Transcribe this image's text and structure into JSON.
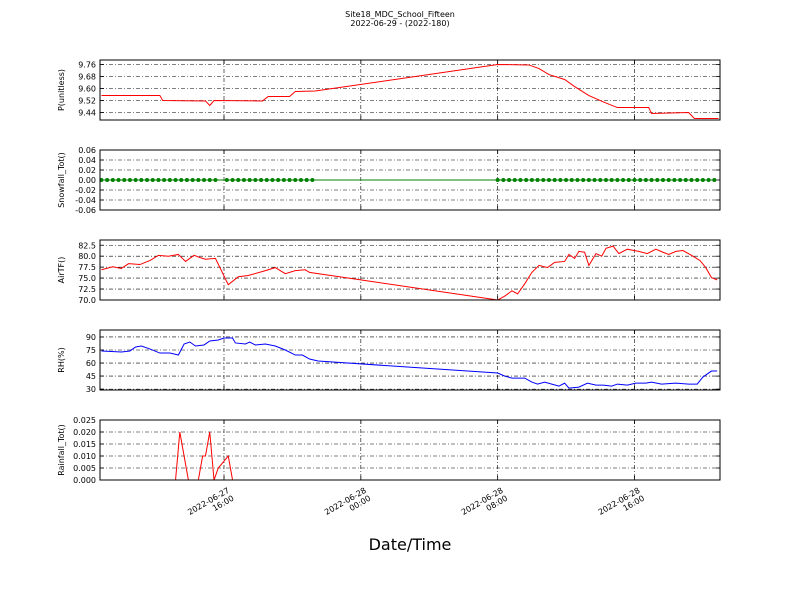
{
  "title": "Site18_MDC_School_Fifteen",
  "subtitle": "2022-06-29 - (2022-180)",
  "xlabel": "Date/Time",
  "chart_data": [
    {
      "type": "line",
      "ylabel": "P(unitless)",
      "xlim": [
        "2022-06-27T08:45",
        "2022-06-28T21:00"
      ],
      "ylim": [
        9.39,
        9.79
      ],
      "yticks": [
        9.44,
        9.52,
        {
          "value": 9.6,
          "label": "9.60"
        },
        9.68,
        9.76
      ],
      "grid": true,
      "series": [
        {
          "color": "#ff0000",
          "x": [
            "2022-06-27T08:50",
            "2022-06-27T12:15",
            "2022-06-27T12:25",
            "2022-06-27T14:55",
            "2022-06-27T15:10",
            "2022-06-27T15:25",
            "2022-06-27T18:15",
            "2022-06-27T18:35",
            "2022-06-27T19:50",
            "2022-06-27T20:10",
            "2022-06-27T21:20",
            "2022-06-28T08:00",
            "2022-06-28T09:50",
            "2022-06-28T10:25",
            "2022-06-28T11:00",
            "2022-06-28T11:55",
            "2022-06-28T12:30",
            "2022-06-28T13:20",
            "2022-06-28T14:15",
            "2022-06-28T15:00",
            "2022-06-28T16:50",
            "2022-06-28T17:00",
            "2022-06-28T19:10",
            "2022-06-28T19:30",
            "2022-06-28T20:55"
          ],
          "values": [
            9.553,
            9.553,
            9.52,
            9.517,
            9.487,
            9.52,
            9.517,
            9.547,
            9.547,
            9.58,
            9.583,
            9.76,
            9.757,
            9.733,
            9.693,
            9.66,
            9.613,
            9.553,
            9.507,
            9.473,
            9.473,
            9.433,
            9.44,
            9.4,
            9.4
          ]
        }
      ]
    },
    {
      "type": "line",
      "ylabel": "Snowfall_Tot()",
      "xlim": [
        "2022-06-27T08:45",
        "2022-06-28T21:00"
      ],
      "ylim": [
        -0.06,
        0.06
      ],
      "yticks": [
        -0.06,
        -0.04,
        -0.02,
        {
          "value": 0,
          "label": "0.00"
        },
        0.02,
        0.04,
        0.06
      ],
      "grid": true,
      "series": [
        {
          "color": "#008000",
          "marker": "dot",
          "x": [
            "2022-06-27T08:50",
            "2022-06-27T09:10",
            "2022-06-27T09:30",
            "2022-06-27T09:50",
            "2022-06-27T10:10",
            "2022-06-27T10:30",
            "2022-06-27T10:50",
            "2022-06-27T11:10",
            "2022-06-27T11:30",
            "2022-06-27T11:50",
            "2022-06-27T12:10",
            "2022-06-27T12:30",
            "2022-06-27T12:50",
            "2022-06-27T13:10",
            "2022-06-27T13:30",
            "2022-06-27T13:50",
            "2022-06-27T14:10",
            "2022-06-27T14:30",
            "2022-06-27T14:50",
            "2022-06-27T15:10",
            "2022-06-27T15:30",
            "2022-06-27T16:10",
            "2022-06-27T16:30",
            "2022-06-27T16:50",
            "2022-06-27T17:10",
            "2022-06-27T17:30",
            "2022-06-27T17:50",
            "2022-06-27T18:10",
            "2022-06-27T18:30",
            "2022-06-27T18:50",
            "2022-06-27T19:10",
            "2022-06-27T19:30",
            "2022-06-27T19:50",
            "2022-06-27T20:10",
            "2022-06-27T20:30",
            "2022-06-27T20:50",
            "2022-06-27T21:10",
            "2022-06-28T08:00",
            "2022-06-28T08:20",
            "2022-06-28T08:40",
            "2022-06-28T09:00",
            "2022-06-28T09:20",
            "2022-06-28T09:40",
            "2022-06-28T10:00",
            "2022-06-28T10:20",
            "2022-06-28T10:40",
            "2022-06-28T11:00",
            "2022-06-28T11:20",
            "2022-06-28T11:40",
            "2022-06-28T12:00",
            "2022-06-28T12:20",
            "2022-06-28T12:40",
            "2022-06-28T13:00",
            "2022-06-28T13:20",
            "2022-06-28T13:40",
            "2022-06-28T14:00",
            "2022-06-28T14:20",
            "2022-06-28T14:40",
            "2022-06-28T15:00",
            "2022-06-28T15:20",
            "2022-06-28T15:40",
            "2022-06-28T16:00",
            "2022-06-28T16:20",
            "2022-06-28T16:40",
            "2022-06-28T17:00",
            "2022-06-28T17:20",
            "2022-06-28T17:40",
            "2022-06-28T18:00",
            "2022-06-28T18:20",
            "2022-06-28T18:40",
            "2022-06-28T19:00",
            "2022-06-28T19:20",
            "2022-06-28T19:40",
            "2022-06-28T20:00",
            "2022-06-28T20:20",
            "2022-06-28T20:40"
          ],
          "values": [
            0,
            0,
            0,
            0,
            0,
            0,
            0,
            0,
            0,
            0,
            0,
            0,
            0,
            0,
            0,
            0,
            0,
            0,
            0,
            0,
            0,
            0,
            0,
            0,
            0,
            0,
            0,
            0,
            0,
            0,
            0,
            0,
            0,
            0,
            0,
            0,
            0,
            0,
            0,
            0,
            0,
            0,
            0,
            0,
            0,
            0,
            0,
            0,
            0,
            0,
            0,
            0,
            0,
            0,
            0,
            0,
            0,
            0,
            0,
            0,
            0,
            0,
            0,
            0,
            0,
            0,
            0,
            0,
            0,
            0,
            0,
            0,
            0,
            0,
            0,
            0
          ]
        }
      ]
    },
    {
      "type": "line",
      "ylabel": "AirTF()",
      "xlim": [
        "2022-06-27T08:45",
        "2022-06-28T21:00"
      ],
      "ylim": [
        70,
        83.7
      ],
      "yticks": [
        {
          "value": 70,
          "label": "70.0"
        },
        72.5,
        {
          "value": 75,
          "label": "75.0"
        },
        77.5,
        {
          "value": 80,
          "label": "80.0"
        },
        82.5
      ],
      "grid": true,
      "series": [
        {
          "color": "#ff0000",
          "x": [
            "2022-06-27T08:50",
            "2022-06-27T09:30",
            "2022-06-27T10:00",
            "2022-06-27T10:25",
            "2022-06-27T11:05",
            "2022-06-27T11:40",
            "2022-06-27T12:10",
            "2022-06-27T12:45",
            "2022-06-27T13:20",
            "2022-06-27T13:45",
            "2022-06-27T14:15",
            "2022-06-27T14:35",
            "2022-06-27T14:55",
            "2022-06-27T15:30",
            "2022-06-27T16:15",
            "2022-06-27T16:50",
            "2022-06-27T17:25",
            "2022-06-27T18:15",
            "2022-06-27T19:00",
            "2022-06-27T19:35",
            "2022-06-27T20:10",
            "2022-06-27T20:45",
            "2022-06-27T21:00",
            "2022-06-28T08:00",
            "2022-06-28T08:25",
            "2022-06-28T08:50",
            "2022-06-28T09:10",
            "2022-06-28T09:35",
            "2022-06-28T10:00",
            "2022-06-28T10:25",
            "2022-06-28T10:55",
            "2022-06-28T11:20",
            "2022-06-28T11:55",
            "2022-06-28T12:10",
            "2022-06-28T12:30",
            "2022-06-28T12:45",
            "2022-06-28T13:05",
            "2022-06-28T13:20",
            "2022-06-28T13:45",
            "2022-06-28T14:05",
            "2022-06-28T14:20",
            "2022-06-28T14:45",
            "2022-06-28T15:05",
            "2022-06-28T15:35",
            "2022-06-28T16:15",
            "2022-06-28T16:45",
            "2022-06-28T17:15",
            "2022-06-28T17:40",
            "2022-06-28T18:00",
            "2022-06-28T18:25",
            "2022-06-28T18:50",
            "2022-06-28T19:20",
            "2022-06-28T19:50",
            "2022-06-28T20:10",
            "2022-06-28T20:30",
            "2022-06-28T20:50"
          ],
          "values": [
            76.9,
            77.6,
            77.2,
            78.3,
            78.1,
            79.0,
            80.2,
            80.0,
            80.4,
            78.8,
            80.2,
            79.7,
            79.3,
            79.5,
            73.5,
            75.3,
            75.6,
            76.5,
            77.4,
            76.0,
            76.7,
            76.9,
            76.3,
            70.0,
            70.9,
            72.1,
            71.4,
            73.7,
            76.3,
            77.9,
            77.4,
            78.6,
            78.8,
            80.4,
            79.5,
            81.1,
            80.9,
            77.9,
            80.6,
            80.0,
            81.8,
            82.3,
            80.6,
            81.6,
            81.1,
            80.6,
            81.6,
            80.9,
            80.4,
            81.1,
            81.3,
            80.2,
            79.0,
            77.4,
            75.1,
            74.6
          ]
        }
      ]
    },
    {
      "type": "line",
      "ylabel": "RH(%)",
      "xlim": [
        "2022-06-27T08:45",
        "2022-06-28T21:00"
      ],
      "ylim": [
        29,
        98
      ],
      "yticks": [
        30,
        45,
        60,
        75,
        90
      ],
      "grid": true,
      "series": [
        {
          "color": "#0000ff",
          "x": [
            "2022-06-27T08:50",
            "2022-06-27T10:00",
            "2022-06-27T10:30",
            "2022-06-27T10:50",
            "2022-06-27T11:10",
            "2022-06-27T11:40",
            "2022-06-27T12:15",
            "2022-06-27T12:50",
            "2022-06-27T13:20",
            "2022-06-27T13:40",
            "2022-06-27T14:00",
            "2022-06-27T14:20",
            "2022-06-27T14:50",
            "2022-06-27T15:10",
            "2022-06-27T15:40",
            "2022-06-27T16:00",
            "2022-06-27T16:30",
            "2022-06-27T16:40",
            "2022-06-27T17:15",
            "2022-06-27T17:30",
            "2022-06-27T17:50",
            "2022-06-27T18:25",
            "2022-06-27T19:00",
            "2022-06-27T19:35",
            "2022-06-27T20:10",
            "2022-06-27T20:35",
            "2022-06-27T21:00",
            "2022-06-27T21:30",
            "2022-06-28T08:00",
            "2022-06-28T08:25",
            "2022-06-28T08:50",
            "2022-06-28T09:35",
            "2022-06-28T10:00",
            "2022-06-28T10:20",
            "2022-06-28T10:45",
            "2022-06-28T11:10",
            "2022-06-28T11:35",
            "2022-06-28T11:55",
            "2022-06-28T12:10",
            "2022-06-28T12:45",
            "2022-06-28T13:15",
            "2022-06-28T13:45",
            "2022-06-28T14:10",
            "2022-06-28T14:40",
            "2022-06-28T15:00",
            "2022-06-28T15:35",
            "2022-06-28T16:05",
            "2022-06-28T16:40",
            "2022-06-28T17:00",
            "2022-06-28T17:35",
            "2022-06-28T18:25",
            "2022-06-28T19:10",
            "2022-06-28T19:40",
            "2022-06-28T20:00",
            "2022-06-28T20:30",
            "2022-06-28T20:50"
          ],
          "values": [
            73.9,
            72.7,
            73.9,
            78.5,
            79.6,
            76.2,
            71.5,
            71.5,
            69.2,
            81.9,
            84.2,
            79.6,
            80.8,
            85.4,
            86.5,
            88.8,
            88.8,
            83.1,
            81.9,
            84.2,
            80.8,
            81.9,
            79.6,
            75.0,
            69.2,
            69.2,
            64.6,
            62.3,
            48.5,
            45.0,
            42.7,
            42.7,
            38.1,
            35.8,
            38.1,
            35.8,
            33.5,
            36.9,
            31.2,
            32.3,
            36.9,
            34.6,
            34.6,
            33.5,
            35.8,
            34.6,
            36.9,
            36.9,
            38.1,
            35.8,
            36.9,
            35.8,
            35.8,
            43.9,
            50.8,
            50.8
          ]
        }
      ]
    },
    {
      "type": "line",
      "ylabel": "Rainfall_Tot()",
      "xlim": [
        "2022-06-27T08:45",
        "2022-06-28T21:00"
      ],
      "ylim": [
        0,
        0.025
      ],
      "yticks": [
        {
          "value": 0,
          "label": "0.000"
        },
        0.005,
        {
          "value": 0.01,
          "label": "0.010"
        },
        0.015,
        {
          "value": 0.02,
          "label": "0.020"
        },
        0.025
      ],
      "grid": true,
      "xticks": [
        {
          "value": "2022-06-27T16:00",
          "label": [
            "2022-06-27",
            "16:00"
          ]
        },
        {
          "value": "2022-06-28T00:00",
          "label": [
            "2022-06-28",
            "00:00"
          ]
        },
        {
          "value": "2022-06-28T08:00",
          "label": [
            "2022-06-28",
            "08:00"
          ]
        },
        {
          "value": "2022-06-28T16:00",
          "label": [
            "2022-06-28",
            "16:00"
          ]
        }
      ],
      "series": [
        {
          "color": "#ff0000",
          "x": [
            "2022-06-27T08:50",
            "2022-06-27T13:10",
            "2022-06-27T13:25",
            "2022-06-27T13:55",
            "2022-06-27T14:30",
            "2022-06-27T14:45",
            "2022-06-27T14:55",
            "2022-06-27T15:10",
            "2022-06-27T15:25",
            "2022-06-27T15:40",
            "2022-06-27T16:15",
            "2022-06-27T16:30",
            "2022-06-27T21:10",
            "2022-06-28T08:00",
            "2022-06-28T20:55"
          ],
          "values": [
            0,
            0,
            0.02,
            0,
            0,
            0.01,
            0.01,
            0.02,
            0,
            0.005,
            0.01,
            0,
            0,
            0,
            0
          ]
        }
      ]
    }
  ]
}
